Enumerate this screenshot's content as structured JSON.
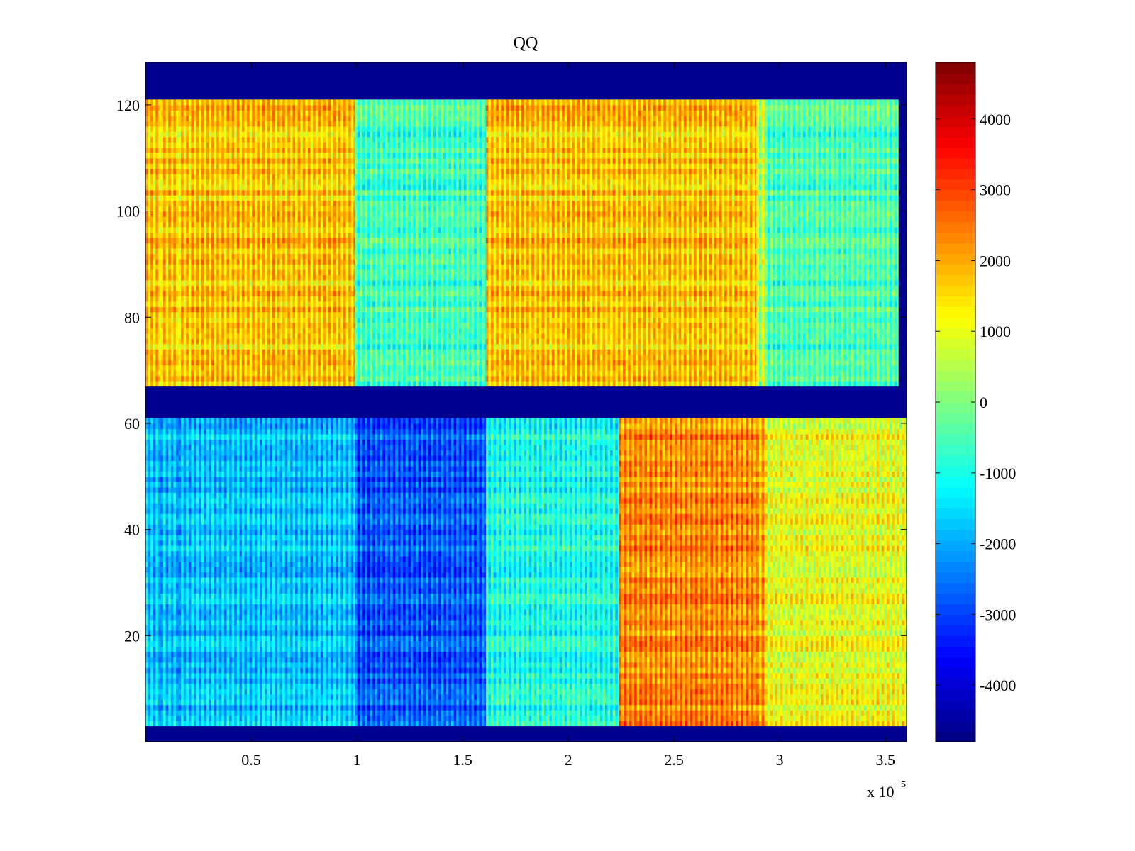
{
  "chart_data": {
    "type": "heatmap",
    "title": "QQ",
    "xlabel": "",
    "ylabel": "",
    "x_exponent_label": "x 10",
    "x_exponent_power": "5",
    "xlim": [
      0,
      3.6
    ],
    "ylim": [
      0,
      128
    ],
    "xticks": [
      0.5,
      1,
      1.5,
      2,
      2.5,
      3,
      3.5
    ],
    "xtick_labels": [
      "0.5",
      "1",
      "1.5",
      "2",
      "2.5",
      "3",
      "3.5"
    ],
    "yticks": [
      20,
      40,
      60,
      80,
      100,
      120
    ],
    "ytick_labels": [
      "20",
      "40",
      "60",
      "80",
      "100",
      "120"
    ],
    "colorbar": {
      "colormap": "jet",
      "range": [
        -4800,
        4800
      ],
      "ticks": [
        4000,
        3000,
        2000,
        1000,
        0,
        -1000,
        -2000,
        -3000,
        -4000
      ],
      "tick_labels": [
        "4000",
        "3000",
        "2000",
        "1000",
        "0",
        "-1000",
        "-2000",
        "-3000",
        "-4000"
      ]
    },
    "blank_row_bands": [
      [
        0,
        3
      ],
      [
        61,
        67
      ],
      [
        121,
        128
      ]
    ],
    "regions": [
      {
        "x": [
          0,
          0.99
        ],
        "y": [
          67,
          121
        ],
        "approx_value": 1700
      },
      {
        "x": [
          0.99,
          1.61
        ],
        "y": [
          67,
          121
        ],
        "approx_value": -600
      },
      {
        "x": [
          1.61,
          2.89
        ],
        "y": [
          67,
          121
        ],
        "approx_value": 1700
      },
      {
        "x": [
          2.89,
          2.93
        ],
        "y": [
          67,
          121
        ],
        "approx_value": 500
      },
      {
        "x": [
          2.93,
          3.56
        ],
        "y": [
          67,
          121
        ],
        "approx_value": -500
      },
      {
        "x": [
          0,
          0.99
        ],
        "y": [
          3,
          61
        ],
        "approx_value": -1800
      },
      {
        "x": [
          0.99,
          1.61
        ],
        "y": [
          3,
          61
        ],
        "approx_value": -2800
      },
      {
        "x": [
          1.61,
          2.24
        ],
        "y": [
          3,
          61
        ],
        "approx_value": -1000
      },
      {
        "x": [
          2.24,
          2.89
        ],
        "y": [
          3,
          61
        ],
        "approx_value": 2300
      },
      {
        "x": [
          2.89,
          2.93
        ],
        "y": [
          3,
          61
        ],
        "approx_value": 2000
      },
      {
        "x": [
          2.93,
          3.6
        ],
        "y": [
          3,
          61
        ],
        "approx_value": 1000
      }
    ]
  }
}
